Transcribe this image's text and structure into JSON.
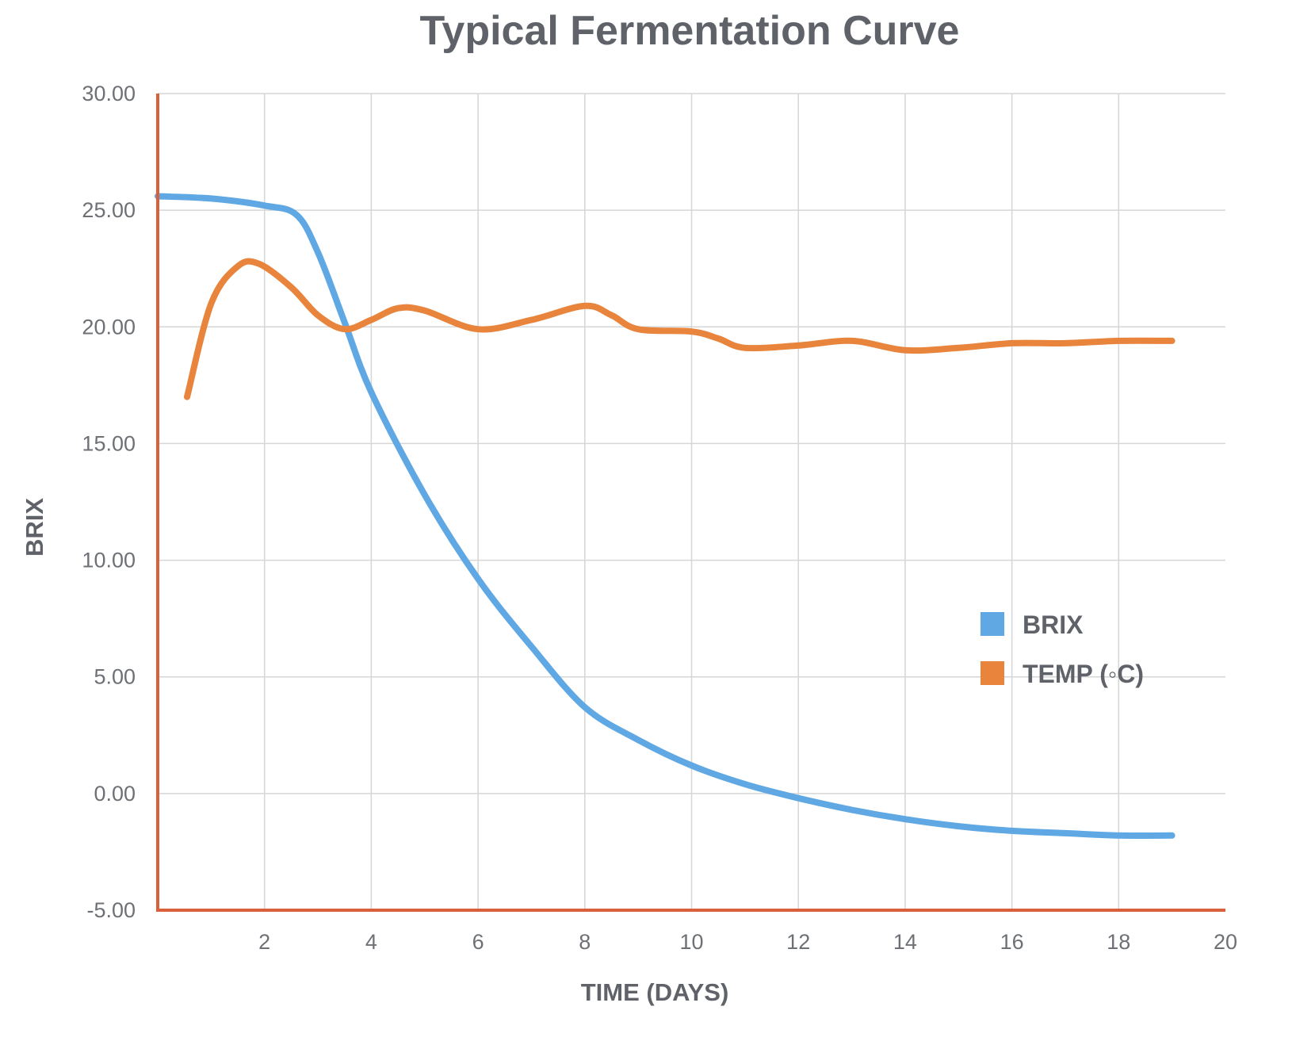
{
  "chart_data": {
    "type": "line",
    "title": "Typical Fermentation Curve",
    "xlabel": "TIME (DAYS)",
    "ylabel": "BRIX",
    "xlim": [
      0,
      20
    ],
    "ylim": [
      -5,
      30
    ],
    "x_ticks": [
      2,
      4,
      6,
      8,
      10,
      12,
      14,
      16,
      18,
      20
    ],
    "x_tick_labels": [
      "2",
      "4",
      "6",
      "8",
      "10",
      "12",
      "14",
      "16",
      "18",
      "20"
    ],
    "y_ticks": [
      -5,
      0,
      5,
      10,
      15,
      20,
      25,
      30
    ],
    "y_tick_labels": [
      "-5.00",
      "0.00",
      "5.00",
      "10.00",
      "15.00",
      "20.00",
      "25.00",
      "30.00"
    ],
    "grid": true,
    "legend_position": "right",
    "series": [
      {
        "name": "BRIX",
        "color": "#5fa8e3",
        "points": [
          [
            0,
            25.6
          ],
          [
            1,
            25.5
          ],
          [
            2,
            25.2
          ],
          [
            2.6,
            24.8
          ],
          [
            3,
            23.2
          ],
          [
            3.5,
            20.2
          ],
          [
            4,
            17.2
          ],
          [
            5,
            12.8
          ],
          [
            6,
            9.2
          ],
          [
            7,
            6.3
          ],
          [
            8,
            3.7
          ],
          [
            9,
            2.3
          ],
          [
            10,
            1.2
          ],
          [
            11,
            0.4
          ],
          [
            12,
            -0.2
          ],
          [
            13,
            -0.7
          ],
          [
            14,
            -1.1
          ],
          [
            15,
            -1.4
          ],
          [
            16,
            -1.6
          ],
          [
            17,
            -1.7
          ],
          [
            18,
            -1.8
          ],
          [
            19,
            -1.8
          ]
        ]
      },
      {
        "name": "TEMP (◦C)",
        "color": "#e8843c",
        "points": [
          [
            0.55,
            17.0
          ],
          [
            1,
            21.0
          ],
          [
            1.5,
            22.6
          ],
          [
            1.9,
            22.7
          ],
          [
            2.5,
            21.7
          ],
          [
            3,
            20.5
          ],
          [
            3.5,
            19.9
          ],
          [
            4,
            20.3
          ],
          [
            4.5,
            20.8
          ],
          [
            5,
            20.7
          ],
          [
            6,
            19.9
          ],
          [
            7,
            20.3
          ],
          [
            8,
            20.9
          ],
          [
            8.5,
            20.5
          ],
          [
            9,
            19.9
          ],
          [
            10,
            19.8
          ],
          [
            10.5,
            19.5
          ],
          [
            11,
            19.1
          ],
          [
            12,
            19.2
          ],
          [
            13,
            19.4
          ],
          [
            14,
            19.0
          ],
          [
            15,
            19.1
          ],
          [
            16,
            19.3
          ],
          [
            17,
            19.3
          ],
          [
            18,
            19.4
          ],
          [
            19,
            19.4
          ]
        ]
      }
    ]
  }
}
